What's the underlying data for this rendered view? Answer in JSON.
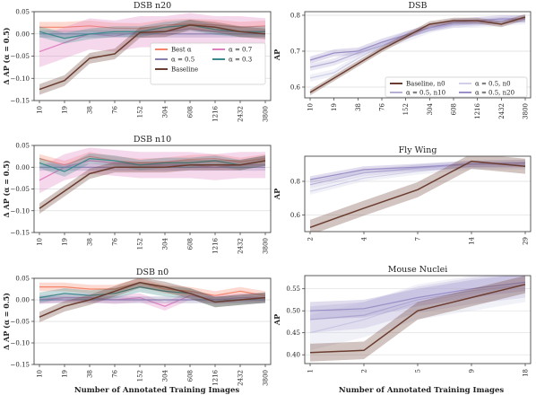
{
  "figure": {
    "left_xlabel": "Number of Annotated Training Images",
    "right_xlabel": "Number of Annotated Training Images"
  },
  "chart_data": [
    {
      "id": "dsb-n20",
      "type": "line",
      "title": "DSB n20",
      "ylabel": "Δ AP (α = 0.5)",
      "categories": [
        "10",
        "19",
        "38",
        "76",
        "152",
        "304",
        "608",
        "1216",
        "2432",
        "3800"
      ],
      "ylim": [
        -0.15,
        0.05
      ],
      "yticks": [
        -0.15,
        -0.1,
        -0.05,
        0.0,
        0.05
      ],
      "ytick_labels": [
        "−0.15",
        "−0.10",
        "−0.05",
        "0.00",
        "0.05"
      ],
      "grid": true,
      "legend_position": "right",
      "series": [
        {
          "name": "Best α",
          "color": "#f4846a",
          "band": 0.012,
          "values": [
            0.015,
            0.015,
            0.018,
            0.013,
            0.012,
            0.02,
            0.022,
            0.02,
            0.015,
            0.018
          ]
        },
        {
          "name": "α = 0.7",
          "color": "#e07fc0",
          "band": 0.035,
          "values": [
            -0.04,
            -0.02,
            0.0,
            -0.005,
            0.005,
            0.005,
            0.012,
            0.005,
            0.005,
            0.0
          ]
        },
        {
          "name": "α = 0.5",
          "color": "#8a80b0",
          "band": 0.008,
          "values": [
            0.0,
            0.0,
            0.0,
            0.0,
            0.0,
            0.0,
            0.0,
            0.0,
            0.0,
            0.0
          ]
        },
        {
          "name": "α = 0.3",
          "color": "#3a8a8c",
          "band": 0.012,
          "values": [
            0.005,
            -0.01,
            0.0,
            0.005,
            0.005,
            0.015,
            0.02,
            0.01,
            0.005,
            0.005
          ]
        },
        {
          "name": "Baseline",
          "color": "#6b3d30",
          "band": 0.012,
          "values": [
            -0.125,
            -0.105,
            -0.055,
            -0.045,
            0.003,
            0.005,
            0.02,
            0.015,
            0.005,
            0.0
          ]
        }
      ]
    },
    {
      "id": "dsb-main",
      "type": "line",
      "title": "DSB",
      "ylabel": "AP",
      "categories": [
        "10",
        "19",
        "38",
        "76",
        "152",
        "304",
        "608",
        "1216",
        "2432",
        "3800"
      ],
      "ylim": [
        0.57,
        0.81
      ],
      "yticks": [
        0.6,
        0.7,
        0.8
      ],
      "ytick_labels": [
        "0.6",
        "0.7",
        "0.8"
      ],
      "grid": true,
      "legend_position": "bottom-right",
      "series": [
        {
          "name": "Baseline, n0",
          "color": "#6b3d30",
          "band": 0.008,
          "values": [
            0.585,
            0.625,
            0.665,
            0.705,
            0.74,
            0.775,
            0.785,
            0.785,
            0.775,
            0.795
          ]
        },
        {
          "name": "α = 0.5, n0",
          "color": "#d2d0e8",
          "band": 0.01,
          "values": [
            0.625,
            0.64,
            0.68,
            0.715,
            0.735,
            0.76,
            0.775,
            0.775,
            0.78,
            0.785
          ]
        },
        {
          "name": "α = 0.5, n10",
          "color": "#b6b0d6",
          "band": 0.01,
          "values": [
            0.655,
            0.67,
            0.695,
            0.715,
            0.745,
            0.765,
            0.775,
            0.78,
            0.785,
            0.79
          ]
        },
        {
          "name": "α = 0.5, n20",
          "color": "#9a8fc6",
          "band": 0.01,
          "values": [
            0.675,
            0.695,
            0.7,
            0.725,
            0.745,
            0.765,
            0.78,
            0.785,
            0.79,
            0.79
          ]
        }
      ]
    },
    {
      "id": "dsb-n10",
      "type": "line",
      "title": "DSB n10",
      "ylabel": "Δ AP (α = 0.5)",
      "categories": [
        "10",
        "19",
        "38",
        "76",
        "152",
        "304",
        "608",
        "1216",
        "2432",
        "3800"
      ],
      "ylim": [
        -0.15,
        0.05
      ],
      "yticks": [
        -0.15,
        -0.1,
        -0.05,
        0.0,
        0.05
      ],
      "ytick_labels": [
        "−0.15",
        "−0.10",
        "−0.05",
        "0.00",
        "0.05"
      ],
      "grid": true,
      "series": [
        {
          "name": "Best α",
          "color": "#f4846a",
          "band": 0.01,
          "values": [
            0.02,
            0.005,
            0.025,
            0.015,
            0.01,
            0.012,
            0.018,
            0.02,
            0.012,
            0.02
          ]
        },
        {
          "name": "α = 0.7",
          "color": "#e07fc0",
          "band": 0.03,
          "values": [
            -0.03,
            0.0,
            0.015,
            0.01,
            0.005,
            0.005,
            0.005,
            0.0,
            0.005,
            0.005
          ]
        },
        {
          "name": "α = 0.5",
          "color": "#8a80b0",
          "band": 0.008,
          "values": [
            0.0,
            0.0,
            0.0,
            0.0,
            0.0,
            0.0,
            0.0,
            0.0,
            0.0,
            0.0
          ]
        },
        {
          "name": "α = 0.3",
          "color": "#3a8a8c",
          "band": 0.012,
          "values": [
            0.01,
            -0.01,
            0.02,
            0.015,
            0.005,
            0.01,
            0.01,
            0.015,
            0.005,
            0.015
          ]
        },
        {
          "name": "Baseline",
          "color": "#6b3d30",
          "band": 0.012,
          "values": [
            -0.095,
            -0.055,
            -0.015,
            0.0,
            0.0,
            0.0,
            0.005,
            0.005,
            0.005,
            0.015
          ]
        }
      ]
    },
    {
      "id": "fly-wing",
      "type": "line",
      "title": "Fly Wing",
      "ylabel": "AP",
      "categories": [
        "2",
        "4",
        "7",
        "14",
        "29"
      ],
      "ylim": [
        0.5,
        0.95
      ],
      "yticks": [
        0.6,
        0.8
      ],
      "ytick_labels": [
        "0.6",
        "0.8"
      ],
      "grid": true,
      "series": [
        {
          "name": "Baseline, n0",
          "color": "#6b3d30",
          "band": 0.045,
          "values": [
            0.525,
            0.64,
            0.75,
            0.92,
            0.89
          ]
        },
        {
          "name": "α = 0.5, n0",
          "color": "#d2d0e8",
          "band": 0.02,
          "values": [
            0.74,
            0.82,
            0.86,
            0.89,
            0.89
          ]
        },
        {
          "name": "α = 0.5, n10",
          "color": "#b6b0d6",
          "band": 0.02,
          "values": [
            0.78,
            0.85,
            0.88,
            0.9,
            0.9
          ]
        },
        {
          "name": "α = 0.5, n20",
          "color": "#9a8fc6",
          "band": 0.02,
          "values": [
            0.81,
            0.87,
            0.885,
            0.905,
            0.91
          ]
        }
      ]
    },
    {
      "id": "dsb-n0",
      "type": "line",
      "title": "DSB n0",
      "ylabel": "Δ AP (α = 0.5)",
      "categories": [
        "10",
        "19",
        "38",
        "76",
        "152",
        "304",
        "608",
        "1216",
        "2432",
        "3800"
      ],
      "ylim": [
        -0.15,
        0.05
      ],
      "yticks": [
        -0.15,
        -0.1,
        -0.05,
        0.0,
        0.05
      ],
      "ytick_labels": [
        "−0.15",
        "−0.10",
        "−0.05",
        "0.00",
        "0.05"
      ],
      "grid": true,
      "series": [
        {
          "name": "Best α",
          "color": "#f4846a",
          "band": 0.01,
          "values": [
            0.03,
            0.03,
            0.025,
            0.025,
            0.04,
            0.025,
            0.02,
            0.01,
            0.02,
            0.01
          ]
        },
        {
          "name": "α = 0.7",
          "color": "#e07fc0",
          "band": 0.01,
          "values": [
            0.0,
            0.005,
            0.005,
            0.0,
            0.005,
            -0.015,
            0.01,
            0.0,
            0.005,
            0.005
          ]
        },
        {
          "name": "α = 0.5",
          "color": "#8a80b0",
          "band": 0.008,
          "values": [
            0.0,
            0.0,
            0.0,
            0.0,
            0.0,
            0.0,
            0.0,
            0.0,
            0.0,
            0.0
          ]
        },
        {
          "name": "α = 0.3",
          "color": "#3a8a8c",
          "band": 0.012,
          "values": [
            0.005,
            0.015,
            0.01,
            0.015,
            0.03,
            0.02,
            0.015,
            -0.005,
            0.0,
            0.005
          ]
        },
        {
          "name": "Baseline",
          "color": "#6b3d30",
          "band": 0.012,
          "values": [
            -0.04,
            -0.015,
            0.0,
            0.02,
            0.04,
            0.03,
            0.015,
            -0.005,
            0.0,
            0.005
          ]
        }
      ]
    },
    {
      "id": "mouse-nuclei",
      "type": "line",
      "title": "Mouse Nuclei",
      "ylabel": "AP",
      "categories": [
        "1",
        "2",
        "5",
        "9",
        "18"
      ],
      "ylim": [
        0.38,
        0.58
      ],
      "yticks": [
        0.4,
        0.45,
        0.5,
        0.55
      ],
      "ytick_labels": [
        "0.40",
        "0.45",
        "0.50",
        "0.55"
      ],
      "grid": true,
      "series": [
        {
          "name": "Baseline, n0",
          "color": "#6b3d30",
          "band": 0.02,
          "values": [
            0.405,
            0.41,
            0.5,
            0.53,
            0.56
          ]
        },
        {
          "name": "α = 0.5, n0",
          "color": "#d2d0e8",
          "band": 0.04,
          "values": [
            0.45,
            0.48,
            0.52,
            0.54,
            0.56
          ]
        },
        {
          "name": "α = 0.5, n10",
          "color": "#b6b0d6",
          "band": 0.03,
          "values": [
            0.48,
            0.49,
            0.525,
            0.545,
            0.56
          ]
        },
        {
          "name": "α = 0.5, n20",
          "color": "#9a8fc6",
          "band": 0.02,
          "values": [
            0.5,
            0.505,
            0.53,
            0.55,
            0.565
          ]
        }
      ]
    }
  ]
}
